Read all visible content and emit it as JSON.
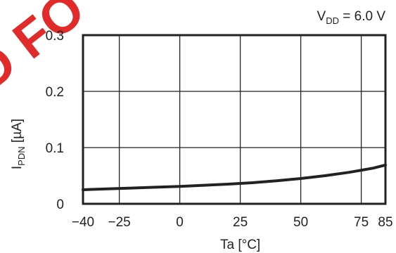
{
  "watermark": {
    "text": "D FO",
    "color": "#e02020"
  },
  "chart_data": {
    "type": "line",
    "annotation": {
      "base": "V",
      "sub": "DD",
      "rest": " = 6.0 V"
    },
    "xlabel": "Ta [°C]",
    "ylabel": {
      "base": "I",
      "sub": "PDN",
      "rest": " [µA]"
    },
    "xlim": [
      -40,
      85
    ],
    "ylim": [
      0,
      0.3
    ],
    "x_ticks": [
      -40,
      -25,
      0,
      25,
      50,
      75,
      85
    ],
    "x_tick_labels": [
      "−40",
      "−25",
      "0",
      "25",
      "50",
      "75",
      "85"
    ],
    "x_gridlines": [
      -25,
      0,
      25,
      50,
      75
    ],
    "y_ticks": [
      0,
      0.1,
      0.2,
      0.3
    ],
    "y_tick_labels": [
      "0",
      "0.1",
      "0.2",
      "0.3"
    ],
    "grid": true,
    "series": [
      {
        "color": "#222222",
        "x": [
          -40,
          -30,
          -20,
          -10,
          0,
          10,
          20,
          30,
          40,
          50,
          60,
          70,
          80,
          85
        ],
        "y": [
          0.025,
          0.0265,
          0.028,
          0.0295,
          0.031,
          0.033,
          0.035,
          0.0375,
          0.041,
          0.045,
          0.05,
          0.056,
          0.0635,
          0.069
        ]
      }
    ]
  }
}
